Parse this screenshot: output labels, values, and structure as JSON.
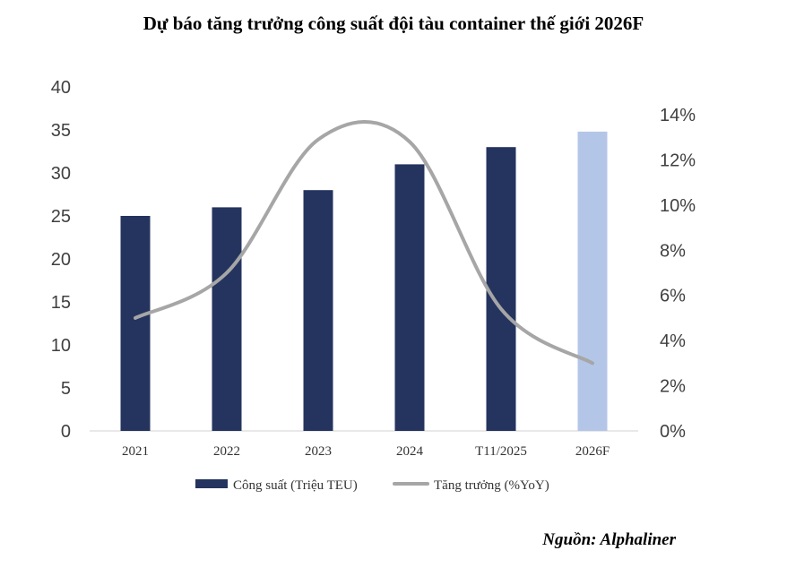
{
  "chart_data": {
    "type": "bar",
    "title": "Dự báo tăng trưởng công suất đội tàu container thế giới 2026F",
    "categories": [
      "2021",
      "2022",
      "2023",
      "2024",
      "T11/2025",
      "2026F"
    ],
    "series": [
      {
        "name": "Công suất  (Triệu TEU)",
        "type": "bar",
        "axis": "left",
        "values": [
          25,
          26,
          28,
          31,
          33,
          34.8
        ],
        "colors": [
          "#24345f",
          "#24345f",
          "#24345f",
          "#24345f",
          "#24345f",
          "#b4c6e7"
        ]
      },
      {
        "name": "Tăng trưởng (%YoY)",
        "type": "line",
        "axis": "right",
        "smooth": true,
        "color": "#a6a6a6",
        "values": [
          5.0,
          7.0,
          12.9,
          12.8,
          5.4,
          3.0
        ]
      }
    ],
    "y_left": {
      "min": 0,
      "max": 40,
      "ticks": [
        "0",
        "5",
        "10",
        "15",
        "20",
        "25",
        "30",
        "35",
        "40"
      ]
    },
    "y_right": {
      "min": 0,
      "max": 15.23,
      "ticks": [
        "0%",
        "2%",
        "4%",
        "6%",
        "8%",
        "10%",
        "12%",
        "14%"
      ]
    },
    "grid": false,
    "legend": "bottom",
    "source": "Nguồn: Alphaliner"
  }
}
